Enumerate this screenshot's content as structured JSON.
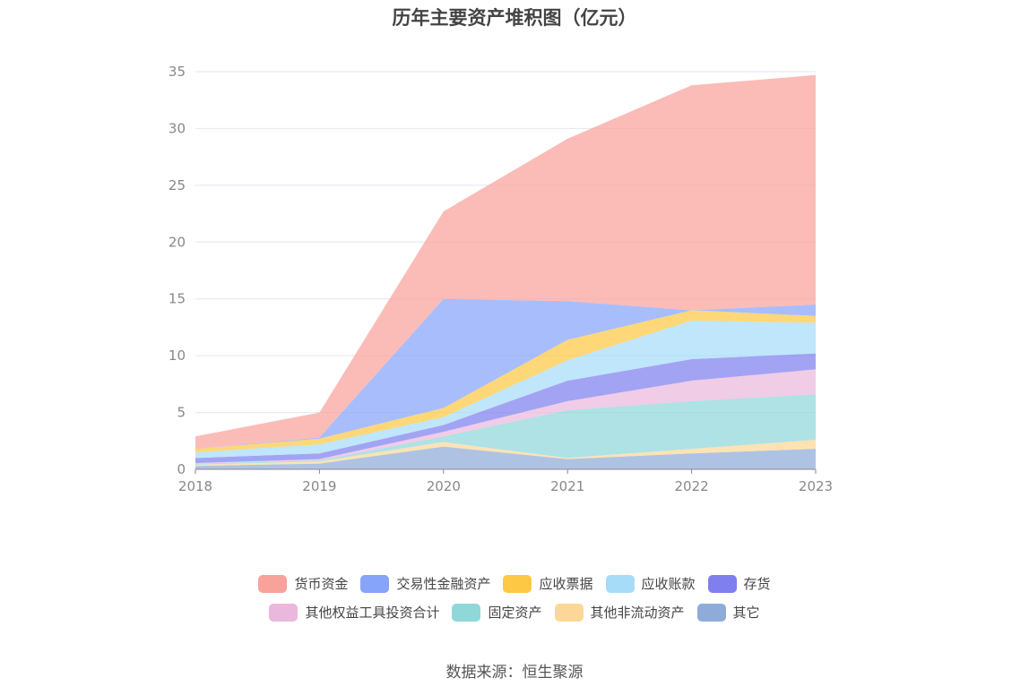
{
  "chart_data": {
    "type": "area",
    "stacked": true,
    "title": "历年主要资产堆积图（亿元）",
    "x": [
      "2018",
      "2019",
      "2020",
      "2021",
      "2022",
      "2023"
    ],
    "ylim": [
      0,
      35
    ],
    "yticks": [
      "0",
      "5",
      "10",
      "15",
      "20",
      "25",
      "30",
      "35"
    ],
    "grid": true,
    "legend_position": "bottom",
    "series": [
      {
        "name": "其它",
        "values": [
          0.3,
          0.5,
          2.0,
          0.9,
          1.4,
          1.8
        ],
        "color": "#8facd8"
      },
      {
        "name": "其他非流动资产",
        "values": [
          0.1,
          0.2,
          0.4,
          0.1,
          0.4,
          0.8
        ],
        "color": "#fcd797"
      },
      {
        "name": "固定资产",
        "values": [
          0.1,
          0.1,
          0.5,
          4.2,
          4.2,
          4.0
        ],
        "color": "#8fd7d9"
      },
      {
        "name": "其他权益工具投资合计",
        "values": [
          0.05,
          0.1,
          0.4,
          0.8,
          1.8,
          2.2
        ],
        "color": "#eab8dc"
      },
      {
        "name": "存货",
        "values": [
          0.45,
          0.5,
          0.6,
          1.8,
          1.9,
          1.4
        ],
        "color": "#7f7ff0"
      },
      {
        "name": "应收账款",
        "values": [
          0.5,
          0.8,
          0.7,
          1.8,
          3.4,
          2.7
        ],
        "color": "#a6dcf8"
      },
      {
        "name": "应收票据",
        "values": [
          0.3,
          0.5,
          0.8,
          1.8,
          0.9,
          0.6
        ],
        "color": "#fdc844"
      },
      {
        "name": "交易性金融资产",
        "values": [
          0.0,
          0.1,
          9.6,
          3.4,
          0.0,
          1.0
        ],
        "color": "#87a4fb"
      },
      {
        "name": "货币资金",
        "values": [
          1.1,
          2.2,
          7.7,
          14.3,
          19.8,
          20.2
        ],
        "color": "#f9a29c"
      }
    ]
  },
  "legend": {
    "row1": [
      {
        "label": "货币资金",
        "color": "#f9a29c"
      },
      {
        "label": "交易性金融资产",
        "color": "#87a4fb"
      },
      {
        "label": "应收票据",
        "color": "#fdc844"
      },
      {
        "label": "应收账款",
        "color": "#a6dcf8"
      },
      {
        "label": "存货",
        "color": "#7f7ff0"
      }
    ],
    "row2": [
      {
        "label": "其他权益工具投资合计",
        "color": "#eab8dc"
      },
      {
        "label": "固定资产",
        "color": "#8fd7d9"
      },
      {
        "label": "其他非流动资产",
        "color": "#fcd797"
      },
      {
        "label": "其它",
        "color": "#8facd8"
      }
    ]
  },
  "source": "数据来源：恒生聚源"
}
